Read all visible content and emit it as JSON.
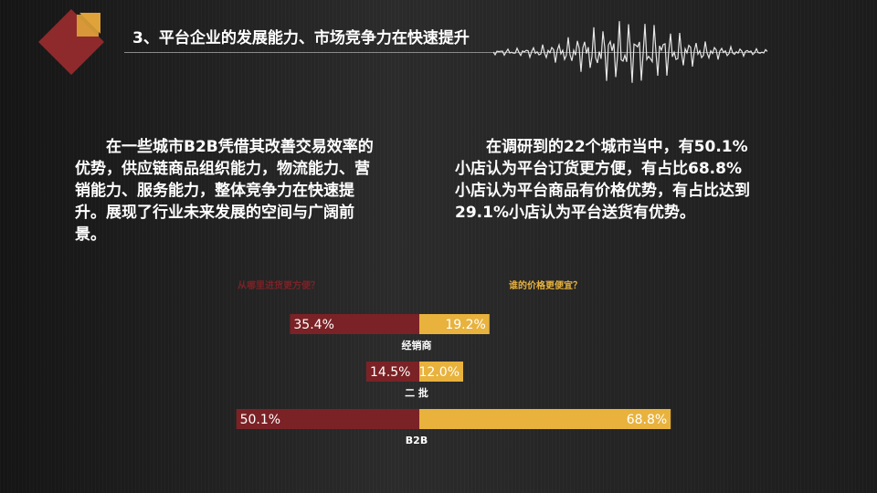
{
  "slide": {
    "title": "3、平台企业的发展能力、市场竞争力在快速提升",
    "paragraph_left": "在一些城市B2B凭借其改善交易效率的优势，供应链商品组织能力，物流能力、营销能力、服务能力，整体竞争力在快速提升。展现了行业未来发展的空间与广阔前景。",
    "paragraph_right": "在调研到的22个城市当中，有50.1%小店认为平台订货更方便，有占比68.8%小店认为平台商品有价格优势，有占比达到29.1%小店认为平台送货有优势。"
  },
  "colors": {
    "left_series": "#7b2226",
    "right_series": "#e8b23c",
    "logo_red": "#8e2a2c",
    "logo_gold": "#e0a33a"
  },
  "chart_data": {
    "type": "bar",
    "orientation": "horizontal-diverging",
    "categories": [
      "经销商",
      "二 批",
      "B2B"
    ],
    "series": [
      {
        "name": "从哪里进货更方便？",
        "side": "left",
        "color": "#7b2226",
        "values": [
          35.4,
          14.5,
          50.1
        ],
        "labels": [
          "35.4%",
          "14.5%",
          "50.1%"
        ]
      },
      {
        "name": "谁的价格更便宜？",
        "side": "right",
        "color": "#e8b23c",
        "values": [
          19.2,
          12.0,
          68.8
        ],
        "labels": [
          "19.2%",
          "12.0%",
          "68.8%"
        ]
      }
    ],
    "legend": "top"
  }
}
